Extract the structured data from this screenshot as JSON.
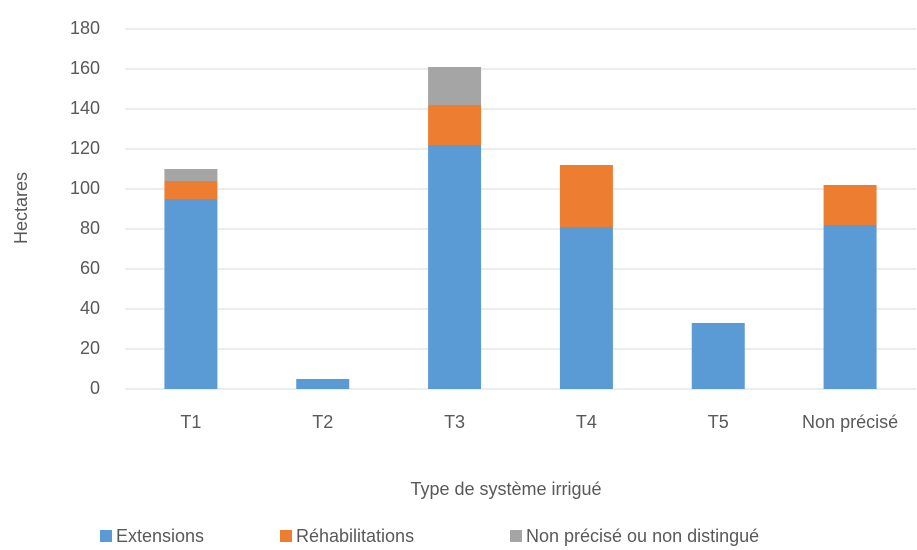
{
  "chart_data": {
    "type": "stacked_bar",
    "categories": [
      "T1",
      "T2",
      "T3",
      "T4",
      "T5",
      "Non précisé"
    ],
    "series": [
      {
        "name": "Extensions",
        "color": "#5b9bd5",
        "values": [
          95,
          5,
          122,
          81,
          33,
          82
        ]
      },
      {
        "name": "Réhabilitations",
        "color": "#ed7d31",
        "values": [
          9,
          0,
          20,
          31,
          0,
          20
        ]
      },
      {
        "name": "Non précisé ou non distingué",
        "color": "#a5a5a5",
        "values": [
          6,
          0,
          19,
          0,
          0,
          0
        ]
      }
    ],
    "ylim": [
      0,
      180
    ],
    "yticks": [
      0,
      20,
      40,
      60,
      80,
      100,
      120,
      140,
      160,
      180
    ],
    "y_label": "Hectares",
    "x_label": "Type de système irrigué",
    "grid": true,
    "legend": "bottom"
  }
}
